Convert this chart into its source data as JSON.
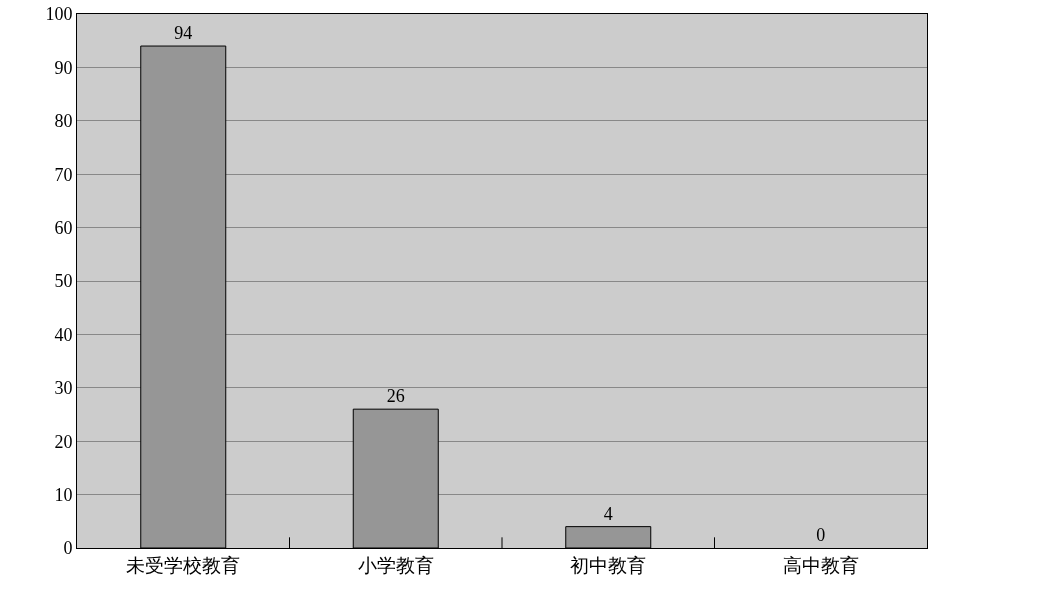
{
  "chart_data": {
    "type": "bar",
    "categories": [
      "未受学校教育",
      "小学教育",
      "初中教育",
      "高中教育"
    ],
    "values": [
      94,
      26,
      4,
      0
    ],
    "color": "#969696",
    "data_labels": true,
    "ylim": [
      0,
      100
    ],
    "yticks": [
      0,
      10,
      20,
      30,
      40,
      50,
      60,
      70,
      80,
      90,
      100
    ],
    "grid": "y",
    "legend": false
  }
}
